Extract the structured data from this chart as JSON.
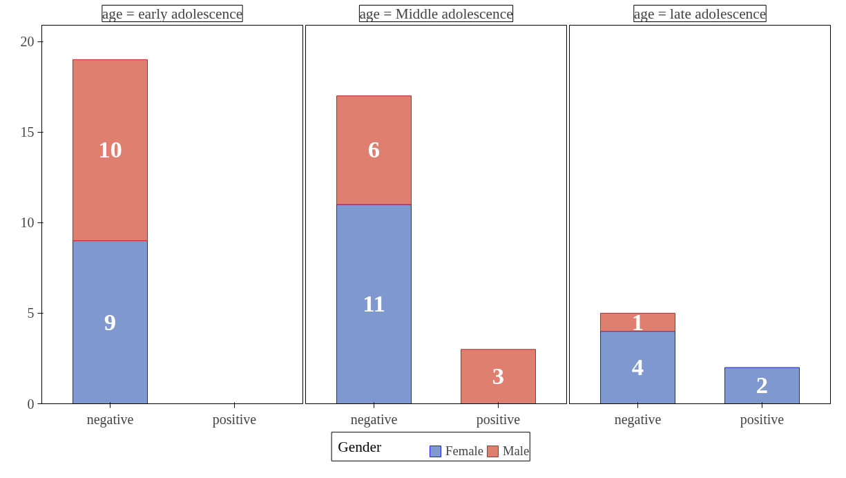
{
  "chart_data": [
    {
      "type": "bar",
      "stacked": true,
      "title": "age = early adolescence",
      "categories": [
        "negative",
        "positive"
      ],
      "ylim": [
        0,
        20.9
      ],
      "yticks": [
        0,
        5,
        10,
        15,
        20
      ],
      "grid": false,
      "legend": "bottom",
      "legend_title": "Gender",
      "series": [
        {
          "name": "Female",
          "color": "#7f98cf",
          "values": [
            9,
            0
          ],
          "value_labels": [
            "9",
            null
          ]
        },
        {
          "name": "Male",
          "color": "#df7f70",
          "values": [
            10,
            0
          ],
          "value_labels": [
            "10",
            null
          ]
        }
      ]
    },
    {
      "type": "bar",
      "stacked": true,
      "title": "age = Middle adolescence",
      "categories": [
        "negative",
        "positive"
      ],
      "ylim": [
        0,
        20.9
      ],
      "tick_labels": "x",
      "grid": false,
      "series": [
        {
          "color": "#7f98cf",
          "values": [
            11,
            0
          ],
          "value_labels": [
            "11",
            null
          ]
        },
        {
          "color": "#df7f70",
          "values": [
            6,
            3
          ],
          "value_labels": [
            "6",
            "3"
          ]
        }
      ]
    },
    {
      "type": "bar",
      "stacked": true,
      "title": "age = late adolescence",
      "categories": [
        "negative",
        "positive"
      ],
      "ylim": [
        0,
        20.9
      ],
      "tick_labels": "x",
      "grid": false,
      "series": [
        {
          "color": "#7f98cf",
          "values": [
            4,
            2
          ],
          "value_labels": [
            "4",
            "2"
          ]
        },
        {
          "color": "#df7f70",
          "values": [
            1,
            0
          ],
          "value_labels": [
            "1",
            null
          ]
        }
      ]
    }
  ]
}
